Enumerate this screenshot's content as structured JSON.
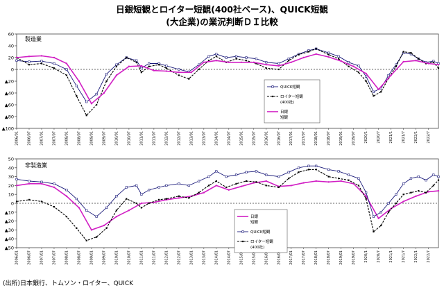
{
  "titles": {
    "line1": "日銀短観とロイター短観(400社ベース)、QUICK短観",
    "line2": "(大企業)の業況判断ＤＩ比較"
  },
  "source": "(出所)日本銀行、トムソン・ロイター、QUICK",
  "colors": {
    "tankan": "#d11fc4",
    "quick": "#1a1a7a",
    "reuters": "#000000"
  },
  "chart_data": [
    {
      "type": "line",
      "title": "",
      "panel_label": "製造業",
      "ylim": [
        -100,
        60
      ],
      "yticks": [
        60,
        40,
        20,
        0,
        -20,
        -40,
        -60,
        -80,
        -100
      ],
      "ytick_labels": [
        "60",
        "40",
        "20",
        "0",
        "▲20",
        "▲40",
        "▲60",
        "▲80",
        "▲100"
      ],
      "xlim": [
        2006.0,
        2022.9
      ],
      "legend_position": "right",
      "series": [
        {
          "key": "quick",
          "legend_lines": [
            "QUICK短観"
          ],
          "x": [
            2006.0,
            2006.5,
            2007.0,
            2007.5,
            2008.0,
            2008.4,
            2008.8,
            2009.2,
            2009.6,
            2010.0,
            2010.4,
            2010.8,
            2011.0,
            2011.3,
            2011.7,
            2012.0,
            2012.5,
            2012.9,
            2013.3,
            2013.7,
            2014.0,
            2014.4,
            2014.8,
            2015.2,
            2015.6,
            2016.0,
            2016.5,
            2016.9,
            2017.3,
            2017.7,
            2018.0,
            2018.5,
            2018.9,
            2019.3,
            2019.7,
            2020.0,
            2020.3,
            2020.6,
            2020.9,
            2021.2,
            2021.5,
            2021.8,
            2022.1,
            2022.4,
            2022.7,
            2022.9
          ],
          "y": [
            15,
            13,
            14,
            10,
            0,
            -28,
            -55,
            -42,
            -8,
            8,
            20,
            15,
            2,
            10,
            10,
            6,
            0,
            -4,
            8,
            22,
            26,
            20,
            22,
            20,
            18,
            12,
            10,
            18,
            26,
            32,
            35,
            28,
            22,
            12,
            6,
            -12,
            -38,
            -32,
            -10,
            8,
            28,
            26,
            18,
            12,
            14,
            10
          ]
        },
        {
          "key": "reuters",
          "legend_lines": [
            "ロイター短観",
            "(400社)"
          ],
          "x": [
            2006.0,
            2006.5,
            2007.0,
            2007.5,
            2008.0,
            2008.4,
            2008.8,
            2009.2,
            2009.6,
            2010.0,
            2010.4,
            2010.8,
            2011.0,
            2011.3,
            2011.7,
            2012.0,
            2012.5,
            2012.9,
            2013.3,
            2013.7,
            2014.0,
            2014.4,
            2014.8,
            2015.2,
            2015.6,
            2016.0,
            2016.5,
            2016.9,
            2017.3,
            2017.7,
            2018.0,
            2018.5,
            2018.9,
            2019.3,
            2019.7,
            2020.0,
            2020.3,
            2020.6,
            2020.9,
            2021.2,
            2021.5,
            2021.8,
            2022.1,
            2022.4,
            2022.7,
            2022.9
          ],
          "y": [
            20,
            8,
            10,
            2,
            -10,
            -45,
            -78,
            -60,
            -20,
            5,
            20,
            12,
            -5,
            5,
            8,
            2,
            -10,
            -16,
            0,
            15,
            22,
            12,
            18,
            15,
            10,
            2,
            0,
            15,
            25,
            30,
            35,
            25,
            18,
            5,
            -5,
            -20,
            -45,
            -38,
            -15,
            5,
            30,
            28,
            18,
            10,
            12,
            2
          ]
        },
        {
          "key": "tankan",
          "legend_lines": [
            "日銀",
            "短観"
          ],
          "x": [
            2006.0,
            2006.5,
            2007.0,
            2007.5,
            2008.0,
            2008.5,
            2009.0,
            2009.5,
            2010.0,
            2010.5,
            2011.0,
            2011.5,
            2012.0,
            2012.5,
            2013.0,
            2013.5,
            2014.0,
            2014.5,
            2015.0,
            2015.5,
            2016.0,
            2016.5,
            2017.0,
            2017.5,
            2018.0,
            2018.5,
            2019.0,
            2019.5,
            2020.0,
            2020.5,
            2021.0,
            2021.5,
            2022.0,
            2022.5,
            2022.9
          ],
          "y": [
            20,
            22,
            23,
            20,
            10,
            -20,
            -58,
            -40,
            -10,
            5,
            6,
            -2,
            -3,
            -5,
            -5,
            12,
            15,
            12,
            12,
            12,
            8,
            6,
            12,
            20,
            26,
            21,
            14,
            5,
            -7,
            -34,
            -10,
            13,
            15,
            10,
            8
          ]
        }
      ],
      "x_tick_labels": [
        "2006/01",
        "2006/07",
        "2007/01",
        "2007/07",
        "2008/01",
        "2008/07",
        "2009/01",
        "2009/07",
        "2010/01",
        "2010/07",
        "2011/01",
        "2011/07",
        "2012/01",
        "2012/07",
        "2013/01",
        "2013/07",
        "2014/01",
        "2014/07",
        "2015/01",
        "2015/07",
        "2016/01",
        "2016/07",
        "2017/01",
        "2017/07",
        "2018/01",
        "2018/07",
        "2019/01",
        "2019/07",
        "2020/1",
        "2020/7",
        "2021/1",
        "2021/7",
        "2022/1",
        "2022/7"
      ]
    },
    {
      "type": "line",
      "title": "",
      "panel_label": "非製造業",
      "ylim": [
        -50,
        50
      ],
      "yticks": [
        50,
        40,
        30,
        20,
        10,
        0,
        -10,
        -20,
        -30,
        -40,
        -50
      ],
      "ytick_labels": [
        "50",
        "40",
        "30",
        "20",
        "10",
        "0",
        "▲10",
        "▲20",
        "▲30",
        "▲40",
        "▲50"
      ],
      "xlim": [
        2006.0,
        2022.9
      ],
      "legend_position": "right",
      "series": [
        {
          "key": "tankan",
          "legend_lines": [
            "日銀",
            "短観"
          ],
          "x": [
            2006.0,
            2006.5,
            2007.0,
            2007.5,
            2008.0,
            2008.5,
            2009.0,
            2009.5,
            2010.0,
            2010.5,
            2011.0,
            2011.5,
            2012.0,
            2012.5,
            2013.0,
            2013.5,
            2014.0,
            2014.5,
            2015.0,
            2015.5,
            2016.0,
            2016.5,
            2017.0,
            2017.5,
            2018.0,
            2018.5,
            2019.0,
            2019.5,
            2020.0,
            2020.5,
            2021.0,
            2021.5,
            2022.0,
            2022.5,
            2022.9
          ],
          "y": [
            20,
            22,
            22,
            18,
            8,
            -5,
            -30,
            -25,
            -15,
            -8,
            0,
            1,
            4,
            6,
            8,
            12,
            20,
            15,
            19,
            23,
            25,
            19,
            20,
            23,
            25,
            24,
            25,
            22,
            8,
            -17,
            -6,
            2,
            8,
            13,
            14
          ]
        },
        {
          "key": "quick",
          "legend_lines": [
            "QUICK短観"
          ],
          "x": [
            2006.0,
            2006.5,
            2007.0,
            2007.5,
            2008.0,
            2008.4,
            2008.8,
            2009.2,
            2009.6,
            2010.0,
            2010.4,
            2010.8,
            2011.0,
            2011.3,
            2011.7,
            2012.0,
            2012.5,
            2012.9,
            2013.3,
            2013.7,
            2014.0,
            2014.4,
            2014.8,
            2015.2,
            2015.6,
            2016.0,
            2016.5,
            2016.9,
            2017.3,
            2017.7,
            2018.0,
            2018.5,
            2018.9,
            2019.3,
            2019.7,
            2020.0,
            2020.3,
            2020.6,
            2020.9,
            2021.2,
            2021.5,
            2021.8,
            2022.1,
            2022.4,
            2022.7,
            2022.9
          ],
          "y": [
            27,
            25,
            24,
            22,
            15,
            5,
            -8,
            -15,
            -5,
            8,
            18,
            20,
            10,
            15,
            18,
            20,
            22,
            20,
            25,
            30,
            36,
            30,
            32,
            35,
            36,
            32,
            30,
            35,
            40,
            42,
            42,
            38,
            36,
            32,
            28,
            12,
            -15,
            -10,
            0,
            10,
            22,
            28,
            30,
            26,
            32,
            30
          ]
        },
        {
          "key": "reuters",
          "legend_lines": [
            "ロイター短観",
            "(400社)"
          ],
          "x": [
            2006.0,
            2006.5,
            2007.0,
            2007.5,
            2008.0,
            2008.4,
            2008.8,
            2009.2,
            2009.6,
            2010.0,
            2010.4,
            2010.8,
            2011.0,
            2011.3,
            2011.7,
            2012.0,
            2012.5,
            2012.9,
            2013.3,
            2013.7,
            2014.0,
            2014.4,
            2014.8,
            2015.2,
            2015.6,
            2016.0,
            2016.5,
            2016.9,
            2017.3,
            2017.7,
            2018.0,
            2018.5,
            2018.9,
            2019.3,
            2019.7,
            2020.0,
            2020.3,
            2020.6,
            2020.9,
            2021.2,
            2021.5,
            2021.8,
            2022.1,
            2022.4,
            2022.7,
            2022.9
          ],
          "y": [
            2,
            4,
            2,
            -4,
            -15,
            -28,
            -42,
            -38,
            -28,
            -8,
            5,
            0,
            -5,
            0,
            4,
            5,
            8,
            6,
            12,
            20,
            25,
            18,
            22,
            25,
            24,
            20,
            18,
            28,
            35,
            38,
            38,
            30,
            28,
            26,
            20,
            5,
            -32,
            -25,
            -10,
            0,
            10,
            12,
            14,
            12,
            20,
            26
          ]
        }
      ],
      "x_tick_labels": [
        "2006/01",
        "2006/07",
        "2007/01",
        "2007/07",
        "2008/01",
        "2008/07",
        "2009/01",
        "2009/07",
        "2010/01",
        "2010/07",
        "2011/01",
        "2011/07",
        "2012/01",
        "2012/07",
        "2013/01",
        "2013/07",
        "2014/01",
        "2014/07",
        "2015/01",
        "2015/07",
        "2016/01",
        "2016/07",
        "2017/01",
        "2017/07",
        "2018/01",
        "2018/07",
        "2019/01",
        "2019/07",
        "2020/1",
        "2020/7",
        "2021/1",
        "2021/7",
        "2022/1",
        "2022/7"
      ]
    }
  ]
}
